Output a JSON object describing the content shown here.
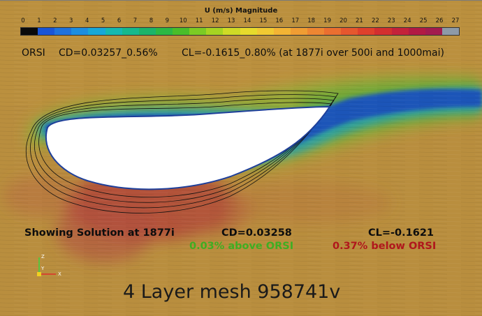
{
  "legend": {
    "title": "U (m/s) Magnitude",
    "ticks": [
      "0",
      "1",
      "2",
      "3",
      "4",
      "5",
      "6",
      "7",
      "8",
      "9",
      "10",
      "11",
      "12",
      "13",
      "14",
      "15",
      "16",
      "17",
      "18",
      "19",
      "20",
      "21",
      "22",
      "23",
      "24",
      "25",
      "26",
      "27"
    ],
    "colors": [
      "#0a0a0a",
      "#1a55d6",
      "#1f72dc",
      "#1d8ee0",
      "#18a8d8",
      "#16b9b0",
      "#16b98d",
      "#1cb46a",
      "#2cb844",
      "#49be2a",
      "#7ccb24",
      "#a6d422",
      "#cfdb26",
      "#e7db2c",
      "#f1c932",
      "#f3b434",
      "#f09d33",
      "#ee8632",
      "#eb6f30",
      "#e6572e",
      "#df402c",
      "#d32f2f",
      "#c4223a",
      "#b21a44",
      "#a31b4e",
      "#8d9aa8"
    ]
  },
  "reference": {
    "label": "ORSI",
    "cd": "CD=0.03257_0.56%",
    "cl": "CL=-0.1615_0.80% (at 1877i over 500i and 1000mai)"
  },
  "solution": {
    "label": "Showing Solution at 1877i",
    "cd": "CD=0.03258",
    "cl": "CL=-0.1621",
    "cd_diff": "0.03% above ORSI",
    "cl_diff": "0.37% below ORSI"
  },
  "mesh": {
    "label": "4 Layer mesh 958741v"
  },
  "axes": {
    "z": "Z",
    "y": "Y",
    "x": "X"
  },
  "colors": {
    "background": "#b98e3e",
    "wake": "#1f54b8",
    "hot": "#b9333a",
    "green_text": "#3fae22",
    "red_text": "#b0171c"
  }
}
